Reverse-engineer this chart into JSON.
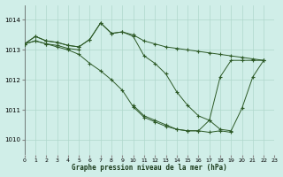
{
  "background_color": "#d0eee8",
  "grid_color": "#b0d8cc",
  "line_color": "#2d5a27",
  "xlabel": "Graphe pression niveau de la mer (hPa)",
  "xlim": [
    0,
    23
  ],
  "ylim": [
    1009.5,
    1014.5
  ],
  "yticks": [
    1010,
    1011,
    1012,
    1013,
    1014
  ],
  "xticks": [
    0,
    1,
    2,
    3,
    4,
    5,
    6,
    7,
    8,
    9,
    10,
    11,
    12,
    13,
    14,
    15,
    16,
    17,
    18,
    19,
    20,
    21,
    22,
    23
  ],
  "series": [
    {
      "x": [
        0,
        1,
        2,
        3,
        4,
        5,
        6,
        7,
        8,
        9,
        10,
        11,
        12,
        13,
        14,
        15,
        16,
        17,
        18,
        19,
        20,
        21,
        22
      ],
      "y": [
        1013.2,
        1013.45,
        1013.3,
        1013.25,
        1013.15,
        1013.1,
        1013.35,
        1013.9,
        1013.55,
        1013.6,
        1013.5,
        1013.3,
        1013.2,
        1013.1,
        1013.05,
        1013.0,
        1012.95,
        1012.9,
        1012.85,
        1012.8,
        1012.75,
        1012.7,
        1012.65
      ]
    },
    {
      "x": [
        0,
        1,
        2,
        3,
        4,
        5,
        6,
        7,
        8,
        9,
        10,
        11,
        12,
        13,
        14,
        15,
        16,
        17,
        18,
        19,
        20,
        21,
        22
      ],
      "y": [
        1013.2,
        1013.45,
        1013.3,
        1013.25,
        1013.15,
        1013.1,
        1013.35,
        1013.9,
        1013.55,
        1013.6,
        1013.45,
        1012.8,
        1012.55,
        1012.2,
        1011.6,
        1011.15,
        1010.8,
        1010.65,
        1010.35,
        1010.3,
        1011.05,
        1012.1,
        1012.65
      ]
    },
    {
      "x": [
        0,
        1,
        2,
        3,
        4,
        5
      ],
      "y": [
        1013.2,
        1013.3,
        1013.2,
        1013.15,
        1013.05,
        1013.0
      ]
    },
    {
      "x": [
        10,
        11,
        12,
        13,
        14,
        15,
        16,
        17,
        18,
        19,
        20,
        21,
        22
      ],
      "y": [
        1011.15,
        1010.8,
        1010.65,
        1010.5,
        1010.35,
        1010.3,
        1010.3,
        1010.65,
        1012.1,
        1012.65,
        1012.65,
        1012.65,
        1012.65
      ]
    },
    {
      "x": [
        0,
        1,
        2,
        3,
        4,
        5,
        6,
        7,
        8,
        9,
        10,
        11,
        12,
        13,
        14,
        15,
        16,
        17,
        18,
        19
      ],
      "y": [
        1013.2,
        1013.3,
        1013.2,
        1013.1,
        1013.0,
        1012.85,
        1012.55,
        1012.3,
        1012.0,
        1011.65,
        1011.1,
        1010.75,
        1010.6,
        1010.45,
        1010.35,
        1010.3,
        1010.3,
        1010.25,
        1010.3,
        1010.25
      ]
    }
  ]
}
